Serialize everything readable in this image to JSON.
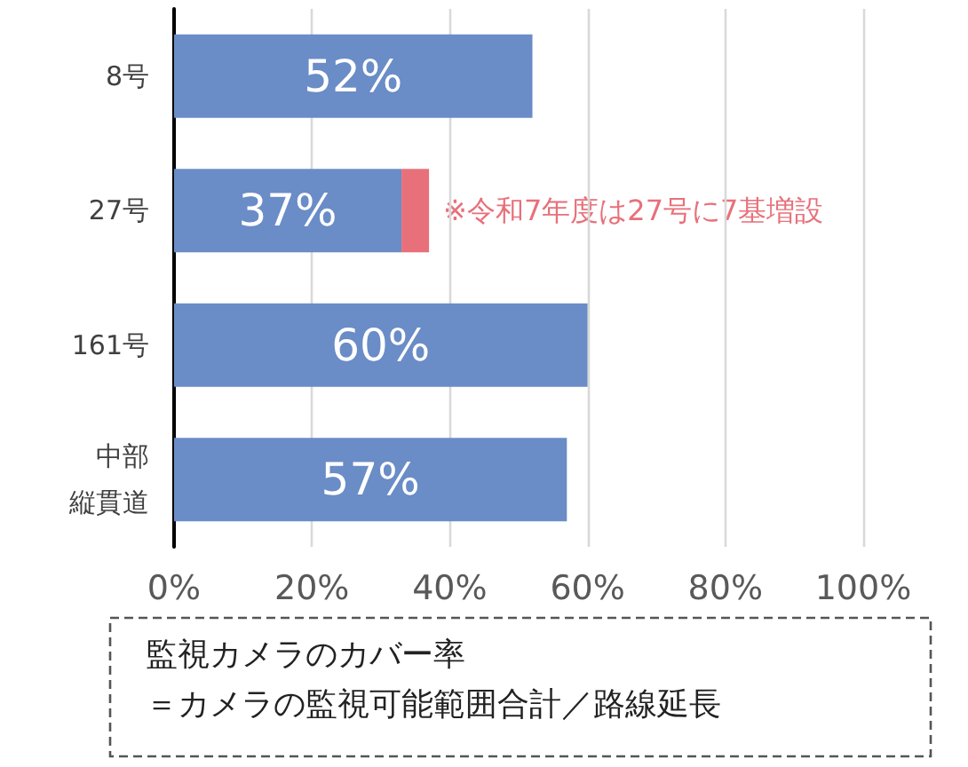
{
  "chart_data": {
    "type": "bar",
    "orientation": "horizontal",
    "stacked": true,
    "categories": [
      "8号",
      "27号",
      "161号",
      "中部縦貫道"
    ],
    "series": [
      {
        "color": "#6a8cc7",
        "values": [
          52,
          33,
          60,
          57
        ]
      },
      {
        "color": "#e8707a",
        "values": [
          null,
          4,
          null,
          null
        ]
      }
    ],
    "totals": [
      "52%",
      "37%",
      "60%",
      "57%"
    ],
    "xlim": [
      0,
      100
    ],
    "xticks": [
      {
        "value": 0,
        "label": "0%"
      },
      {
        "value": 20,
        "label": "20%"
      },
      {
        "value": 40,
        "label": "40%"
      },
      {
        "value": 60,
        "label": "60%"
      },
      {
        "value": 80,
        "label": "80%"
      },
      {
        "value": 100,
        "label": "100%"
      }
    ],
    "grid": "x",
    "annotations": [
      {
        "text": "※令和7年度は27号に7基増設",
        "x": 37,
        "y": "27号"
      },
      "監視カメラのカバー率",
      "＝カメラの監視可能範囲合計／路線延長"
    ]
  }
}
